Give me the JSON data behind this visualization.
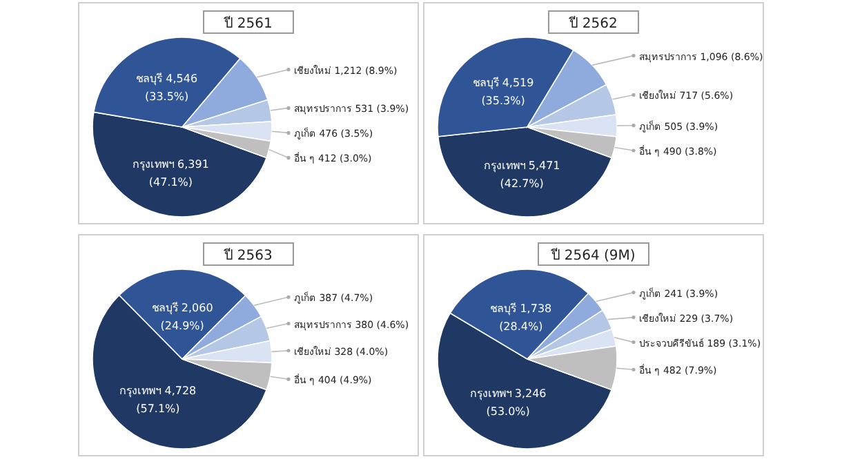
{
  "chart_data": [
    {
      "type": "pie",
      "title": "ปี 2561",
      "categories": [
        "กรุงเทพฯ",
        "ชลบุรี",
        "เชียงใหม่",
        "สมุทรปราการ",
        "ภูเก็ต",
        "อื่น ๆ"
      ],
      "values": [
        6391,
        4546,
        1212,
        531,
        476,
        412
      ],
      "value_labels": [
        "6,391 (47.1%)",
        "4,546 (33.5%)",
        "1,212 (8.9%)",
        "531 (3.9%)",
        "476 (3.5%)",
        "412 (3.0%)"
      ],
      "colors": [
        "#203864",
        "#2f5597",
        "#8faadc",
        "#b4c7e7",
        "#dae3f3",
        "#bfbfbf"
      ]
    },
    {
      "type": "pie",
      "title": "ปี 2562",
      "categories": [
        "กรุงเทพฯ",
        "ชลบุรี",
        "สมุทรปราการ",
        "เชียงใหม่",
        "ภูเก็ต",
        "อื่น ๆ"
      ],
      "values": [
        5471,
        4519,
        1096,
        717,
        505,
        490
      ],
      "value_labels": [
        "5,471 (42.7%)",
        "4,519 (35.3%)",
        "1,096 (8.6%)",
        "717 (5.6%)",
        "505 (3.9%)",
        "490 (3.8%)"
      ],
      "colors": [
        "#203864",
        "#2f5597",
        "#8faadc",
        "#b4c7e7",
        "#dae3f3",
        "#bfbfbf"
      ]
    },
    {
      "type": "pie",
      "title": "ปี 2563",
      "categories": [
        "กรุงเทพฯ",
        "ชลบุรี",
        "ภูเก็ต",
        "สมุทรปราการ",
        "เชียงใหม่",
        "อื่น ๆ"
      ],
      "values": [
        4728,
        2060,
        387,
        380,
        328,
        404
      ],
      "value_labels": [
        "4,728 (57.1%)",
        "2,060 (24.9%)",
        "387 (4.7%)",
        "380 (4.6%)",
        "328 (4.0%)",
        "404 (4.9%)"
      ],
      "colors": [
        "#203864",
        "#2f5597",
        "#8faadc",
        "#b4c7e7",
        "#dae3f3",
        "#bfbfbf"
      ]
    },
    {
      "type": "pie",
      "title": "ปี 2564 (9M)",
      "categories": [
        "กรุงเทพฯ",
        "ชลบุรี",
        "ภูเก็ต",
        "เชียงใหม่",
        "ประจวบคีรีขันธ์",
        "อื่น ๆ"
      ],
      "values": [
        3246,
        1738,
        241,
        229,
        189,
        482
      ],
      "value_labels": [
        "3,246 (53.0%)",
        "1,738 (28.4%)",
        "241 (3.9%)",
        "229 (3.7%)",
        "189 (3.1%)",
        "482 (7.9%)"
      ],
      "colors": [
        "#203864",
        "#2f5597",
        "#8faadc",
        "#b4c7e7",
        "#dae3f3",
        "#bfbfbf"
      ]
    }
  ]
}
